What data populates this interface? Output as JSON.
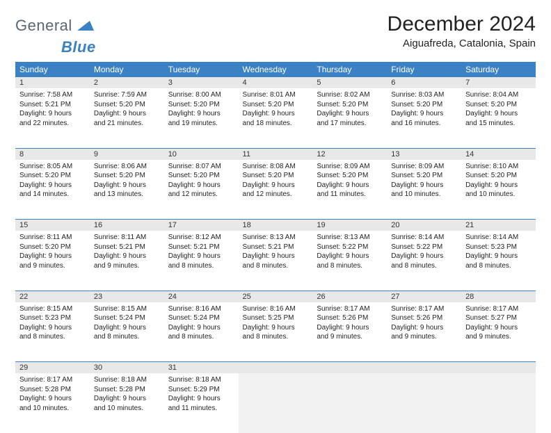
{
  "brand": {
    "part1": "General",
    "part2": "Blue"
  },
  "title": "December 2024",
  "location": "Aiguafreda, Catalonia, Spain",
  "colors": {
    "header_bg": "#3b82c4",
    "daynum_bg": "#e8e8e8",
    "empty_bg": "#f2f2f2",
    "text": "#222222",
    "brand_gray": "#5b6770",
    "brand_blue": "#3b82c4"
  },
  "day_headers": [
    "Sunday",
    "Monday",
    "Tuesday",
    "Wednesday",
    "Thursday",
    "Friday",
    "Saturday"
  ],
  "weeks": [
    {
      "nums": [
        "1",
        "2",
        "3",
        "4",
        "5",
        "6",
        "7"
      ],
      "cells": [
        {
          "sunrise": "Sunrise: 7:58 AM",
          "sunset": "Sunset: 5:21 PM",
          "day1": "Daylight: 9 hours",
          "day2": "and 22 minutes."
        },
        {
          "sunrise": "Sunrise: 7:59 AM",
          "sunset": "Sunset: 5:20 PM",
          "day1": "Daylight: 9 hours",
          "day2": "and 21 minutes."
        },
        {
          "sunrise": "Sunrise: 8:00 AM",
          "sunset": "Sunset: 5:20 PM",
          "day1": "Daylight: 9 hours",
          "day2": "and 19 minutes."
        },
        {
          "sunrise": "Sunrise: 8:01 AM",
          "sunset": "Sunset: 5:20 PM",
          "day1": "Daylight: 9 hours",
          "day2": "and 18 minutes."
        },
        {
          "sunrise": "Sunrise: 8:02 AM",
          "sunset": "Sunset: 5:20 PM",
          "day1": "Daylight: 9 hours",
          "day2": "and 17 minutes."
        },
        {
          "sunrise": "Sunrise: 8:03 AM",
          "sunset": "Sunset: 5:20 PM",
          "day1": "Daylight: 9 hours",
          "day2": "and 16 minutes."
        },
        {
          "sunrise": "Sunrise: 8:04 AM",
          "sunset": "Sunset: 5:20 PM",
          "day1": "Daylight: 9 hours",
          "day2": "and 15 minutes."
        }
      ]
    },
    {
      "nums": [
        "8",
        "9",
        "10",
        "11",
        "12",
        "13",
        "14"
      ],
      "cells": [
        {
          "sunrise": "Sunrise: 8:05 AM",
          "sunset": "Sunset: 5:20 PM",
          "day1": "Daylight: 9 hours",
          "day2": "and 14 minutes."
        },
        {
          "sunrise": "Sunrise: 8:06 AM",
          "sunset": "Sunset: 5:20 PM",
          "day1": "Daylight: 9 hours",
          "day2": "and 13 minutes."
        },
        {
          "sunrise": "Sunrise: 8:07 AM",
          "sunset": "Sunset: 5:20 PM",
          "day1": "Daylight: 9 hours",
          "day2": "and 12 minutes."
        },
        {
          "sunrise": "Sunrise: 8:08 AM",
          "sunset": "Sunset: 5:20 PM",
          "day1": "Daylight: 9 hours",
          "day2": "and 12 minutes."
        },
        {
          "sunrise": "Sunrise: 8:09 AM",
          "sunset": "Sunset: 5:20 PM",
          "day1": "Daylight: 9 hours",
          "day2": "and 11 minutes."
        },
        {
          "sunrise": "Sunrise: 8:09 AM",
          "sunset": "Sunset: 5:20 PM",
          "day1": "Daylight: 9 hours",
          "day2": "and 10 minutes."
        },
        {
          "sunrise": "Sunrise: 8:10 AM",
          "sunset": "Sunset: 5:20 PM",
          "day1": "Daylight: 9 hours",
          "day2": "and 10 minutes."
        }
      ]
    },
    {
      "nums": [
        "15",
        "16",
        "17",
        "18",
        "19",
        "20",
        "21"
      ],
      "cells": [
        {
          "sunrise": "Sunrise: 8:11 AM",
          "sunset": "Sunset: 5:20 PM",
          "day1": "Daylight: 9 hours",
          "day2": "and 9 minutes."
        },
        {
          "sunrise": "Sunrise: 8:11 AM",
          "sunset": "Sunset: 5:21 PM",
          "day1": "Daylight: 9 hours",
          "day2": "and 9 minutes."
        },
        {
          "sunrise": "Sunrise: 8:12 AM",
          "sunset": "Sunset: 5:21 PM",
          "day1": "Daylight: 9 hours",
          "day2": "and 8 minutes."
        },
        {
          "sunrise": "Sunrise: 8:13 AM",
          "sunset": "Sunset: 5:21 PM",
          "day1": "Daylight: 9 hours",
          "day2": "and 8 minutes."
        },
        {
          "sunrise": "Sunrise: 8:13 AM",
          "sunset": "Sunset: 5:22 PM",
          "day1": "Daylight: 9 hours",
          "day2": "and 8 minutes."
        },
        {
          "sunrise": "Sunrise: 8:14 AM",
          "sunset": "Sunset: 5:22 PM",
          "day1": "Daylight: 9 hours",
          "day2": "and 8 minutes."
        },
        {
          "sunrise": "Sunrise: 8:14 AM",
          "sunset": "Sunset: 5:23 PM",
          "day1": "Daylight: 9 hours",
          "day2": "and 8 minutes."
        }
      ]
    },
    {
      "nums": [
        "22",
        "23",
        "24",
        "25",
        "26",
        "27",
        "28"
      ],
      "cells": [
        {
          "sunrise": "Sunrise: 8:15 AM",
          "sunset": "Sunset: 5:23 PM",
          "day1": "Daylight: 9 hours",
          "day2": "and 8 minutes."
        },
        {
          "sunrise": "Sunrise: 8:15 AM",
          "sunset": "Sunset: 5:24 PM",
          "day1": "Daylight: 9 hours",
          "day2": "and 8 minutes."
        },
        {
          "sunrise": "Sunrise: 8:16 AM",
          "sunset": "Sunset: 5:24 PM",
          "day1": "Daylight: 9 hours",
          "day2": "and 8 minutes."
        },
        {
          "sunrise": "Sunrise: 8:16 AM",
          "sunset": "Sunset: 5:25 PM",
          "day1": "Daylight: 9 hours",
          "day2": "and 8 minutes."
        },
        {
          "sunrise": "Sunrise: 8:17 AM",
          "sunset": "Sunset: 5:26 PM",
          "day1": "Daylight: 9 hours",
          "day2": "and 9 minutes."
        },
        {
          "sunrise": "Sunrise: 8:17 AM",
          "sunset": "Sunset: 5:26 PM",
          "day1": "Daylight: 9 hours",
          "day2": "and 9 minutes."
        },
        {
          "sunrise": "Sunrise: 8:17 AM",
          "sunset": "Sunset: 5:27 PM",
          "day1": "Daylight: 9 hours",
          "day2": "and 9 minutes."
        }
      ]
    },
    {
      "nums": [
        "29",
        "30",
        "31",
        "",
        "",
        "",
        ""
      ],
      "cells": [
        {
          "sunrise": "Sunrise: 8:17 AM",
          "sunset": "Sunset: 5:28 PM",
          "day1": "Daylight: 9 hours",
          "day2": "and 10 minutes."
        },
        {
          "sunrise": "Sunrise: 8:18 AM",
          "sunset": "Sunset: 5:28 PM",
          "day1": "Daylight: 9 hours",
          "day2": "and 10 minutes."
        },
        {
          "sunrise": "Sunrise: 8:18 AM",
          "sunset": "Sunset: 5:29 PM",
          "day1": "Daylight: 9 hours",
          "day2": "and 11 minutes."
        },
        null,
        null,
        null,
        null
      ]
    }
  ]
}
